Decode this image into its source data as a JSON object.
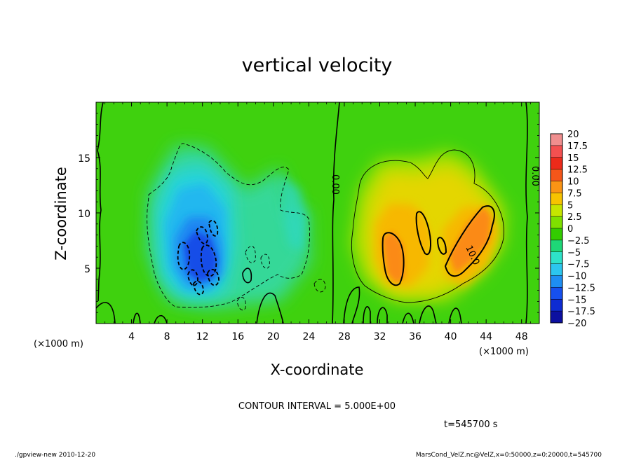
{
  "chart_data": {
    "type": "heatmap",
    "title": "vertical velocity",
    "xlabel": "X-coordinate",
    "ylabel": "Z-coordinate",
    "x_unit_label": "(×1000 m)",
    "z_unit_label": "(×1000 m)",
    "xlim": [
      0,
      50
    ],
    "zlim": [
      0,
      20
    ],
    "x_ticks": [
      4,
      8,
      12,
      16,
      20,
      24,
      28,
      32,
      36,
      40,
      44,
      48
    ],
    "z_ticks": [
      5,
      10,
      15
    ],
    "colorbar": {
      "levels": [
        20,
        17.5,
        15,
        12.5,
        10,
        7.5,
        5,
        2.5,
        0,
        -2.5,
        -5,
        -7.5,
        -10,
        -12.5,
        -15,
        -17.5,
        -20
      ],
      "labels": [
        "20",
        "17.5",
        "15",
        "12.5",
        "10",
        "7.5",
        "5",
        "2.5",
        "0",
        "−2.5",
        "−5",
        "−7.5",
        "−10",
        "−12.5",
        "−15",
        "−17.5",
        "−20"
      ],
      "colors": [
        "#f08f8f",
        "#f35050",
        "#ec2a1a",
        "#f4561a",
        "#fb9414",
        "#f7c300",
        "#c6e600",
        "#7fe000",
        "#33cc00",
        "#1ed777",
        "#2ee2c8",
        "#2cc6ee",
        "#1e8ef2",
        "#1650ee",
        "#0e2cd2",
        "#0c10a0",
        "#6a10c8"
      ]
    },
    "background_value_color": "#3fd10e",
    "contour_interval": 5.0,
    "contour_labels": [
      "0.00",
      "0.00",
      "10.0"
    ],
    "features": [
      {
        "kind": "downdraft",
        "x": 12,
        "z": 7.5,
        "peak": -12
      },
      {
        "kind": "updraft",
        "x": 34,
        "z": 7,
        "peak": 11
      },
      {
        "kind": "updraft",
        "x": 42,
        "z": 7.5,
        "peak": 12
      }
    ]
  },
  "annotations": {
    "contour_interval_text": "CONTOUR INTERVAL = 5.000E+00",
    "time_text": "t=545700  s",
    "footer_left": "./gpview-new   2010-12-20",
    "footer_right": "MarsCond_VelZ.nc@VelZ,x=0:50000,z=0:20000,t=545700"
  }
}
